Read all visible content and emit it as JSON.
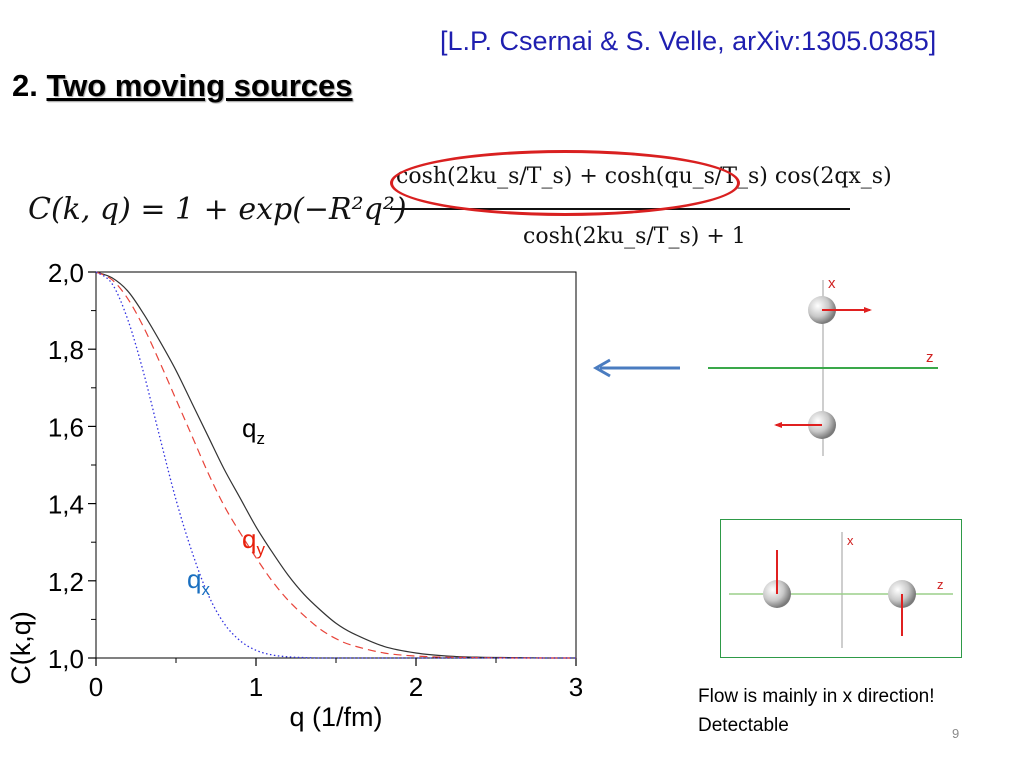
{
  "citation": "[L.P. Csernai & S. Velle, arXiv:1305.0385]",
  "heading": {
    "number": "2.",
    "title": "Two moving sources"
  },
  "formula": {
    "lhs": "C(k, q) = 1 + exp(−R²q²)",
    "numerator": "cosh(2ku_s/T_s) + cosh(qu_s/T_s) cos(2qx_s)",
    "denominator": "cosh(2ku_s/T_s) + 1"
  },
  "chart_data": {
    "type": "line",
    "xlabel": "q  (1/fm)",
    "ylabel": "C(k,q)",
    "xlim": [
      0,
      3
    ],
    "ylim": [
      1.0,
      2.0
    ],
    "xticks": [
      "0",
      "1",
      "2",
      "3"
    ],
    "yticks": [
      "1,0",
      "1,2",
      "1,4",
      "1,6",
      "1,8",
      "2,0"
    ],
    "x": [
      0,
      0.1,
      0.2,
      0.3,
      0.4,
      0.5,
      0.6,
      0.7,
      0.8,
      0.9,
      1.0,
      1.1,
      1.2,
      1.3,
      1.4,
      1.5,
      1.6,
      1.8,
      2.0,
      2.2,
      2.4,
      2.6,
      2.8,
      3.0
    ],
    "series": [
      {
        "name": "q_z",
        "color": "#333333",
        "style": "solid",
        "values": [
          2.0,
          1.985,
          1.95,
          1.89,
          1.82,
          1.745,
          1.66,
          1.575,
          1.49,
          1.415,
          1.34,
          1.275,
          1.215,
          1.165,
          1.125,
          1.09,
          1.065,
          1.03,
          1.013,
          1.005,
          1.002,
          1.001,
          1.0,
          1.0
        ]
      },
      {
        "name": "q_y",
        "color": "#e8443a",
        "style": "dashed",
        "values": [
          2.0,
          1.98,
          1.93,
          1.855,
          1.765,
          1.67,
          1.575,
          1.48,
          1.395,
          1.325,
          1.26,
          1.2,
          1.15,
          1.11,
          1.075,
          1.05,
          1.033,
          1.013,
          1.005,
          1.002,
          1.001,
          1.0,
          1.0,
          1.0
        ]
      },
      {
        "name": "q_x",
        "color": "#3030e0",
        "style": "dotted",
        "values": [
          2.0,
          1.97,
          1.875,
          1.735,
          1.57,
          1.41,
          1.275,
          1.165,
          1.09,
          1.045,
          1.02,
          1.008,
          1.003,
          1.001,
          1.0,
          1.0,
          1.0,
          1.0,
          1.0,
          1.0,
          1.0,
          1.0,
          1.0,
          1.0
        ]
      }
    ],
    "labels": {
      "qz": {
        "base": "q",
        "sub": "z",
        "color": "#000000"
      },
      "qy": {
        "base": "q",
        "sub": "y",
        "color": "#e8200c"
      },
      "qx": {
        "base": "q",
        "sub": "x",
        "color": "#1a6fc0"
      }
    }
  },
  "diagrams": {
    "top": {
      "x_label": "x",
      "z_label": "z"
    },
    "bottom": {
      "x_label": "x",
      "z_label": "z"
    }
  },
  "note": {
    "line1": "Flow is mainly in x direction!",
    "line2": "Detectable"
  },
  "page_number": "9"
}
